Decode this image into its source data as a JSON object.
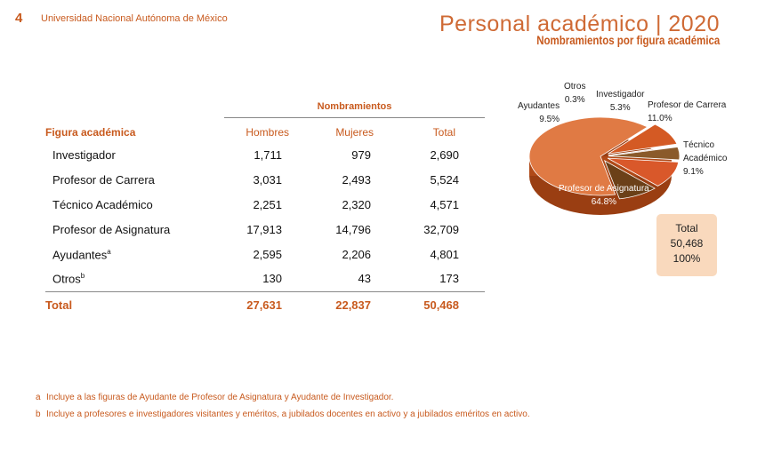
{
  "header": {
    "page_number": "4",
    "institution": "Universidad Nacional Autónoma de México",
    "title": "Personal académico | 2020",
    "subtitle": "Nombramientos por figura académica"
  },
  "table": {
    "group_header": "Nombramientos",
    "columns": [
      "Figura académica",
      "Hombres",
      "Mujeres",
      "Total"
    ],
    "rows": [
      {
        "label": "Investigador",
        "sup": "",
        "hombres": "1,711",
        "mujeres": "979",
        "total": "2,690"
      },
      {
        "label": "Profesor de Carrera",
        "sup": "",
        "hombres": "3,031",
        "mujeres": "2,493",
        "total": "5,524"
      },
      {
        "label": "Técnico Académico",
        "sup": "",
        "hombres": "2,251",
        "mujeres": "2,320",
        "total": "4,571"
      },
      {
        "label": "Profesor de Asignatura",
        "sup": "",
        "hombres": "17,913",
        "mujeres": "14,796",
        "total": "32,709"
      },
      {
        "label": "Ayudantes",
        "sup": "a",
        "hombres": "2,595",
        "mujeres": "2,206",
        "total": "4,801"
      },
      {
        "label": "Otros",
        "sup": "b",
        "hombres": "130",
        "mujeres": "43",
        "total": "173"
      }
    ],
    "total": {
      "label": "Total",
      "hombres": "27,631",
      "mujeres": "22,837",
      "total": "50,468"
    }
  },
  "chart_data": {
    "type": "pie",
    "slices": [
      {
        "name": "Profesor de Asignatura",
        "percent": "64.8%",
        "value": 64.8,
        "color": "#e07a44"
      },
      {
        "name": "Ayudantes",
        "percent": "9.5%",
        "value": 9.5,
        "color": "#d45a24"
      },
      {
        "name": "Otros",
        "percent": "0.3%",
        "value": 0.3,
        "color": "#7a4a1c"
      },
      {
        "name": "Investigador",
        "percent": "5.3%",
        "value": 5.3,
        "color": "#8a5a2a"
      },
      {
        "name": "Profesor de Carrera",
        "percent": "11.0%",
        "value": 11.0,
        "color": "#d9582a"
      },
      {
        "name": "Técnico Académico",
        "percent": "9.1%",
        "value": 9.1,
        "color": "#6b4018"
      }
    ],
    "total_box": {
      "label": "Total",
      "value": "50,468",
      "percent": "100%"
    }
  },
  "notes": [
    {
      "marker": "a",
      "text": "Incluye a las figuras de Ayudante de Profesor de Asignatura y Ayudante de Investigador."
    },
    {
      "marker": "b",
      "text": "Incluye a profesores e investigadores visitantes y eméritos, a jubilados docentes en activo y a jubilados eméritos en activo."
    }
  ]
}
